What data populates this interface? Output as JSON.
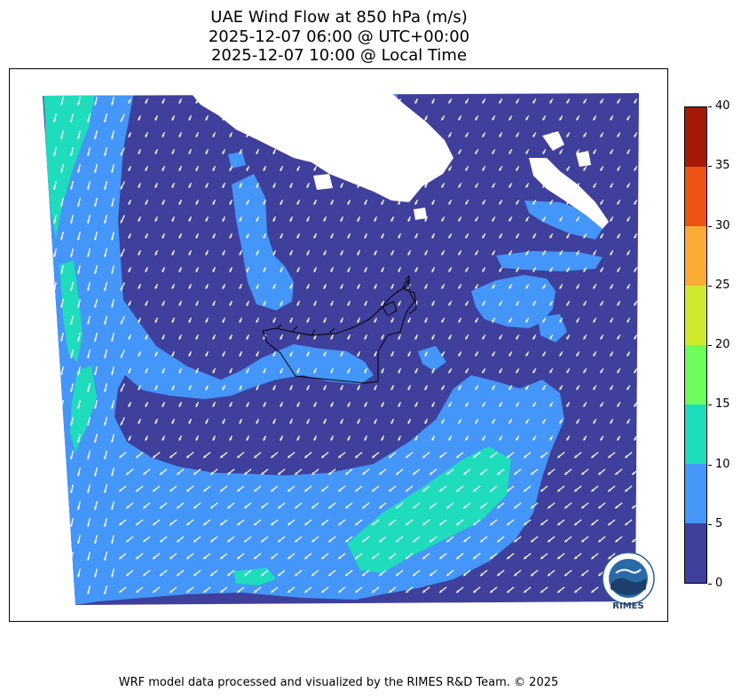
{
  "title_lines": [
    "UAE Wind Flow at 850 hPa (m/s)",
    "2025-12-07 06:00 @ UTC+00:00",
    "2025-12-07 10:00 @ Local Time"
  ],
  "footer": "WRF model data processed and visualized by the RIMES R&D Team. © 2025",
  "logo_text": "RIMES",
  "colorbar": {
    "ticks": [
      "0",
      "5",
      "10",
      "15",
      "20",
      "25",
      "30",
      "35",
      "40"
    ],
    "levels": [
      0,
      5,
      10,
      15,
      20,
      25,
      30,
      35,
      40
    ],
    "colors": [
      "#3f3f9c",
      "#4496f8",
      "#1fdcbc",
      "#6efc5c",
      "#d0e92f",
      "#fbac36",
      "#ec5315",
      "#a51906"
    ]
  },
  "colors": {
    "calm": "#3f3f9c",
    "light": "#4496f8",
    "moderate": "#1fdcbc",
    "no_data": "#ffffff",
    "vector": "#ffffff",
    "border": "#000000"
  }
}
